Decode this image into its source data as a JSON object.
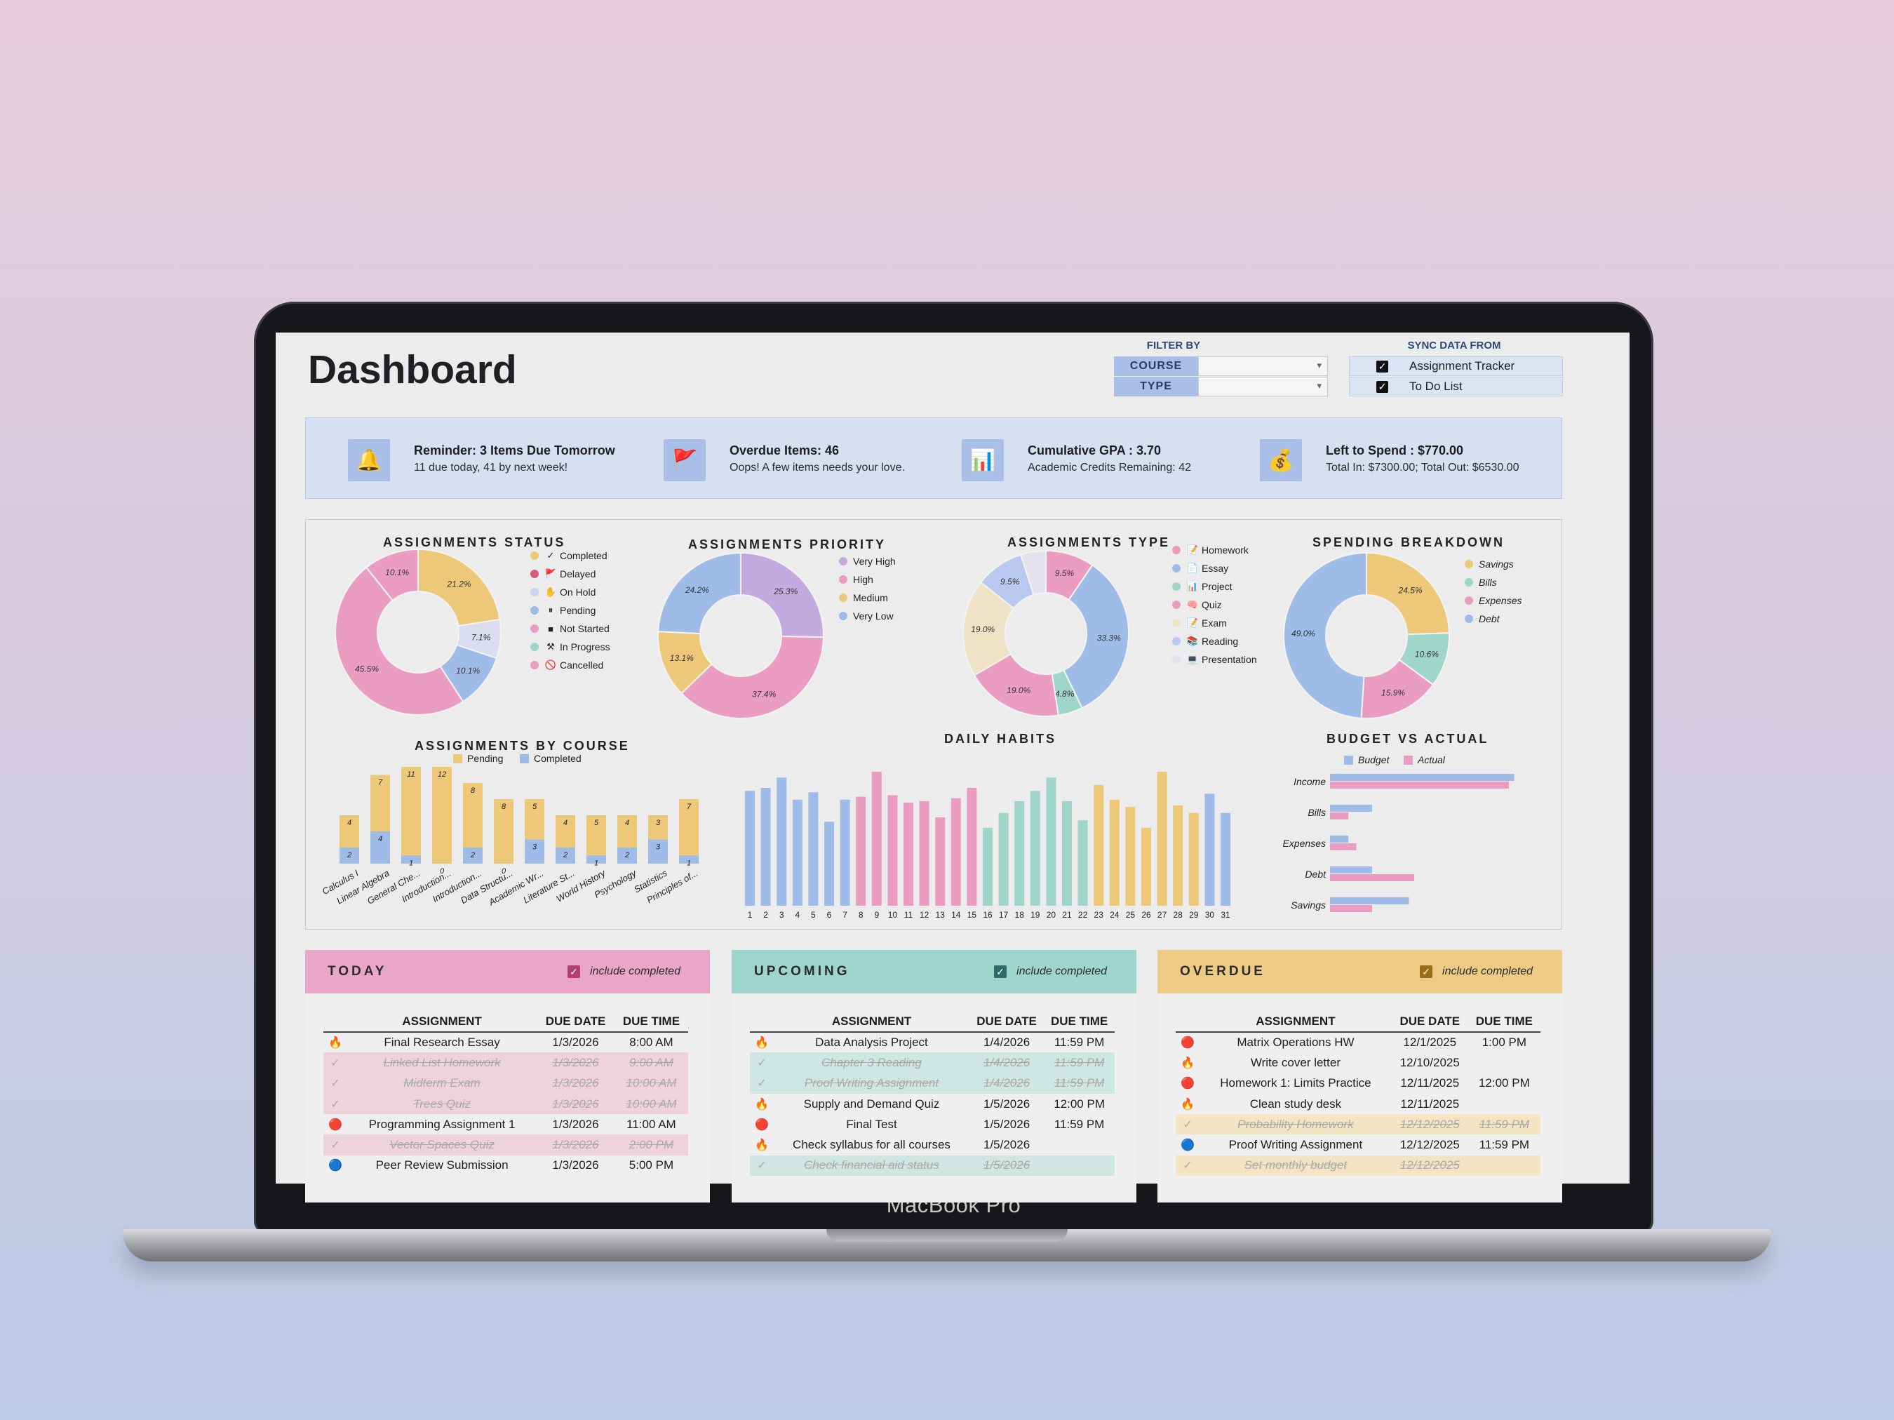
{
  "device_label": "MacBook Pro",
  "header": {
    "title": "Dashboard"
  },
  "filter": {
    "label": "FILTER BY",
    "rows": [
      {
        "label": "COURSE",
        "value": ""
      },
      {
        "label": "TYPE",
        "value": ""
      }
    ]
  },
  "sync": {
    "label": "SYNC DATA FROM",
    "rows": [
      {
        "label": "Assignment Tracker",
        "checked": true
      },
      {
        "label": "To Do List",
        "checked": true
      }
    ]
  },
  "banner": [
    {
      "icon": "bell-icon",
      "glyph": "🔔",
      "title": "Reminder: 3 Items Due Tomorrow",
      "sub": "11 due today, 41 by next week!"
    },
    {
      "icon": "flag-icon",
      "glyph": "🚩",
      "title": "Overdue Items: 46",
      "sub": "Oops! A few items needs your love."
    },
    {
      "icon": "bar-chart-icon",
      "glyph": "📊",
      "title": "Cumulative GPA : 3.70",
      "sub": "Academic Credits Remaining: 42"
    },
    {
      "icon": "money-bag-icon",
      "glyph": "💰",
      "title": "Left to Spend : $770.00",
      "sub": "Total In: $7300.00; Total Out: $6530.00"
    }
  ],
  "chart_data": [
    {
      "type": "pie",
      "title": "ASSIGNMENTS STATUS",
      "labels": [
        "Completed",
        "Delayed",
        "On Hold",
        "Pending",
        "Not Started",
        "In Progress",
        "Cancelled"
      ],
      "values": [
        21.2,
        0,
        7.1,
        10.1,
        45.5,
        0,
        10.1
      ],
      "slice_labels": [
        "21.2%",
        "",
        "7.1%",
        "10.1%",
        "45.5%",
        "",
        "10.1%"
      ],
      "legend_glyphs": [
        "✓",
        "🚩",
        "✋",
        "⏸",
        "■",
        "⚒",
        "🚫"
      ],
      "colors": [
        "#edc878",
        "#e9a4b8",
        "#dcdcf0",
        "#9fbbe8",
        "#ea9dc0",
        "#9fd6c9",
        "#ea9dc0"
      ],
      "legend_colors": [
        "#edc878",
        "#d85c7a",
        "#c9d4f0",
        "#9fbbe8",
        "#ea9dc0",
        "#9fd6c9",
        "#ea9dc0"
      ]
    },
    {
      "type": "pie",
      "title": "ASSIGNMENTS PRIORITY",
      "labels": [
        "Very High",
        "High",
        "Medium",
        "Very Low"
      ],
      "values": [
        25.3,
        37.4,
        13.1,
        24.2
      ],
      "slice_labels": [
        "25.3%",
        "37.4%",
        "13.1%",
        "24.2%"
      ],
      "colors": [
        "#c3abe0",
        "#ea9dc0",
        "#edc878",
        "#9fbbe8"
      ]
    },
    {
      "type": "pie",
      "title": "ASSIGNMENTS TYPE",
      "labels": [
        "Homework",
        "Essay",
        "Project",
        "Quiz",
        "Exam",
        "Reading",
        "Presentation"
      ],
      "values": [
        9.5,
        33.3,
        4.8,
        19.0,
        19.0,
        9.5,
        4.9
      ],
      "slice_labels": [
        "9.5%",
        "33.3%",
        "4.8%",
        "19.0%",
        "19.0%",
        "9.5%",
        ""
      ],
      "legend_glyphs": [
        "📝",
        "📄",
        "📊",
        "🧠",
        "📝",
        "📚",
        "💻"
      ],
      "colors": [
        "#ea9dc0",
        "#9fbbe8",
        "#9fd6c9",
        "#ea9dc0",
        "#f0e2c4",
        "#b9c8ee",
        "#e2e2ee"
      ]
    },
    {
      "type": "pie",
      "title": "SPENDING BREAKDOWN",
      "labels": [
        "Savings",
        "Bills",
        "Expenses",
        "Debt"
      ],
      "values": [
        24.5,
        10.6,
        15.9,
        49.0
      ],
      "slice_labels": [
        "24.5%",
        "10.6%",
        "15.9%",
        "49.0%"
      ],
      "colors": [
        "#edc878",
        "#9fd6c9",
        "#ea9dc0",
        "#9fbbe8"
      ]
    },
    {
      "type": "bar",
      "title": "ASSIGNMENTS BY COURSE",
      "stacked": true,
      "categories": [
        "Calculus I",
        "Linear Algebra",
        "General Che...",
        "Introduction...",
        "Introduction...",
        "Data Structu...",
        "Academic Wr...",
        "Literature St...",
        "World History",
        "Psychology",
        "Statistics",
        "Principles of..."
      ],
      "series": [
        {
          "name": "Completed",
          "values": [
            2,
            4,
            1,
            0,
            2,
            0,
            3,
            2,
            1,
            2,
            3,
            1
          ],
          "color": "#9fbbe8"
        },
        {
          "name": "Pending",
          "values": [
            4,
            7,
            11,
            12,
            8,
            8,
            5,
            4,
            5,
            4,
            3,
            7
          ],
          "color": "#edc878"
        }
      ]
    },
    {
      "type": "bar",
      "title": "DAILY HABITS",
      "categories": [
        "1",
        "2",
        "3",
        "4",
        "5",
        "6",
        "7",
        "8",
        "9",
        "10",
        "11",
        "12",
        "13",
        "14",
        "15",
        "16",
        "17",
        "18",
        "19",
        "20",
        "21",
        "22",
        "23",
        "24",
        "25",
        "26",
        "27",
        "28",
        "29",
        "30",
        "31"
      ],
      "values": [
        78,
        80,
        87,
        72,
        77,
        57,
        72,
        74,
        91,
        75,
        70,
        71,
        60,
        73,
        80,
        53,
        63,
        71,
        78,
        87,
        71,
        58,
        82,
        72,
        67,
        53,
        91,
        68,
        63,
        76,
        63
      ],
      "colors": [
        "#9fbbe8",
        "#9fbbe8",
        "#9fbbe8",
        "#9fbbe8",
        "#9fbbe8",
        "#9fbbe8",
        "#9fbbe8",
        "#ea9dc0",
        "#ea9dc0",
        "#ea9dc0",
        "#ea9dc0",
        "#ea9dc0",
        "#ea9dc0",
        "#ea9dc0",
        "#ea9dc0",
        "#9fd6c9",
        "#9fd6c9",
        "#9fd6c9",
        "#9fd6c9",
        "#9fd6c9",
        "#9fd6c9",
        "#9fd6c9",
        "#edc878",
        "#edc878",
        "#edc878",
        "#edc878",
        "#edc878",
        "#edc878",
        "#edc878",
        "#9fbbe8",
        "#9fbbe8"
      ],
      "ylim": [
        0,
        100
      ]
    },
    {
      "type": "bar",
      "orientation": "horizontal",
      "title": "BUDGET VS ACTUAL",
      "categories": [
        "Income",
        "Bills",
        "Expenses",
        "Debt",
        "Savings"
      ],
      "series": [
        {
          "name": "Budget",
          "values": [
            7000,
            1600,
            700,
            1600,
            3000
          ],
          "color": "#9fbbe8"
        },
        {
          "name": "Actual",
          "values": [
            6800,
            700,
            1000,
            3200,
            1600
          ],
          "color": "#ea9dc0"
        }
      ],
      "xlim": [
        0,
        8000
      ]
    }
  ],
  "panels": [
    {
      "key": "today",
      "title": "TODAY",
      "include_label": "include completed",
      "head_color": "#e9a6c6",
      "box_color": "#b43e6e",
      "columns": [
        "ASSIGNMENT",
        "DUE DATE",
        "DUE TIME"
      ],
      "rows": [
        {
          "icon": "🔥",
          "name": "Final Research Essay",
          "date": "1/3/2026",
          "time": "8:00 AM",
          "done": false
        },
        {
          "icon": "✓",
          "name": "Linked List Homework",
          "date": "1/3/2026",
          "time": "9:00 AM",
          "done": true
        },
        {
          "icon": "✓",
          "name": "Midterm Exam",
          "date": "1/3/2026",
          "time": "10:00 AM",
          "done": true
        },
        {
          "icon": "✓",
          "name": "Trees Quiz",
          "date": "1/3/2026",
          "time": "10:00 AM",
          "done": true
        },
        {
          "icon": "🔴",
          "name": "Programming Assignment 1",
          "date": "1/3/2026",
          "time": "11:00 AM",
          "done": false
        },
        {
          "icon": "✓",
          "name": "Vector Spaces Quiz",
          "date": "1/3/2026",
          "time": "2:00 PM",
          "done": true
        },
        {
          "icon": "🔵",
          "name": "Peer Review Submission",
          "date": "1/3/2026",
          "time": "5:00 PM",
          "done": false
        }
      ]
    },
    {
      "key": "upcoming",
      "title": "UPCOMING",
      "include_label": "include completed",
      "head_color": "#9fd6cc",
      "box_color": "#2e6b6a",
      "columns": [
        "ASSIGNMENT",
        "DUE DATE",
        "DUE TIME"
      ],
      "rows": [
        {
          "icon": "🔥",
          "name": "Data Analysis Project",
          "date": "1/4/2026",
          "time": "11:59 PM",
          "done": false
        },
        {
          "icon": "✓",
          "name": "Chapter 3 Reading",
          "date": "1/4/2026",
          "time": "11:59 PM",
          "done": true
        },
        {
          "icon": "✓",
          "name": "Proof Writing Assignment",
          "date": "1/4/2026",
          "time": "11:59 PM",
          "done": true
        },
        {
          "icon": "🔥",
          "name": "Supply and Demand Quiz",
          "date": "1/5/2026",
          "time": "12:00 PM",
          "done": false
        },
        {
          "icon": "🔴",
          "name": "Final Test",
          "date": "1/5/2026",
          "time": "11:59 PM",
          "done": false
        },
        {
          "icon": "🔥",
          "name": "Check syllabus for all courses",
          "date": "1/5/2026",
          "time": "",
          "done": false
        },
        {
          "icon": "✓",
          "name": "Check financial aid status",
          "date": "1/5/2026",
          "time": "",
          "done": true
        }
      ]
    },
    {
      "key": "overdue",
      "title": "OVERDUE",
      "include_label": "include completed",
      "head_color": "#eecb85",
      "box_color": "#9a6c16",
      "columns": [
        "ASSIGNMENT",
        "DUE DATE",
        "DUE TIME"
      ],
      "rows": [
        {
          "icon": "🔴",
          "name": "Matrix Operations HW",
          "date": "12/1/2025",
          "time": "1:00 PM",
          "done": false
        },
        {
          "icon": "🔥",
          "name": "Write cover letter",
          "date": "12/10/2025",
          "time": "",
          "done": false
        },
        {
          "icon": "🔴",
          "name": "Homework 1: Limits Practice",
          "date": "12/11/2025",
          "time": "12:00 PM",
          "done": false
        },
        {
          "icon": "🔥",
          "name": "Clean study desk",
          "date": "12/11/2025",
          "time": "",
          "done": false
        },
        {
          "icon": "✓",
          "name": "Probability Homework",
          "date": "12/12/2025",
          "time": "11:59 PM",
          "done": true
        },
        {
          "icon": "🔵",
          "name": "Proof Writing Assignment",
          "date": "12/12/2025",
          "time": "11:59 PM",
          "done": false
        },
        {
          "icon": "✓",
          "name": "Set monthly budget",
          "date": "12/12/2025",
          "time": "",
          "done": true
        }
      ]
    }
  ]
}
